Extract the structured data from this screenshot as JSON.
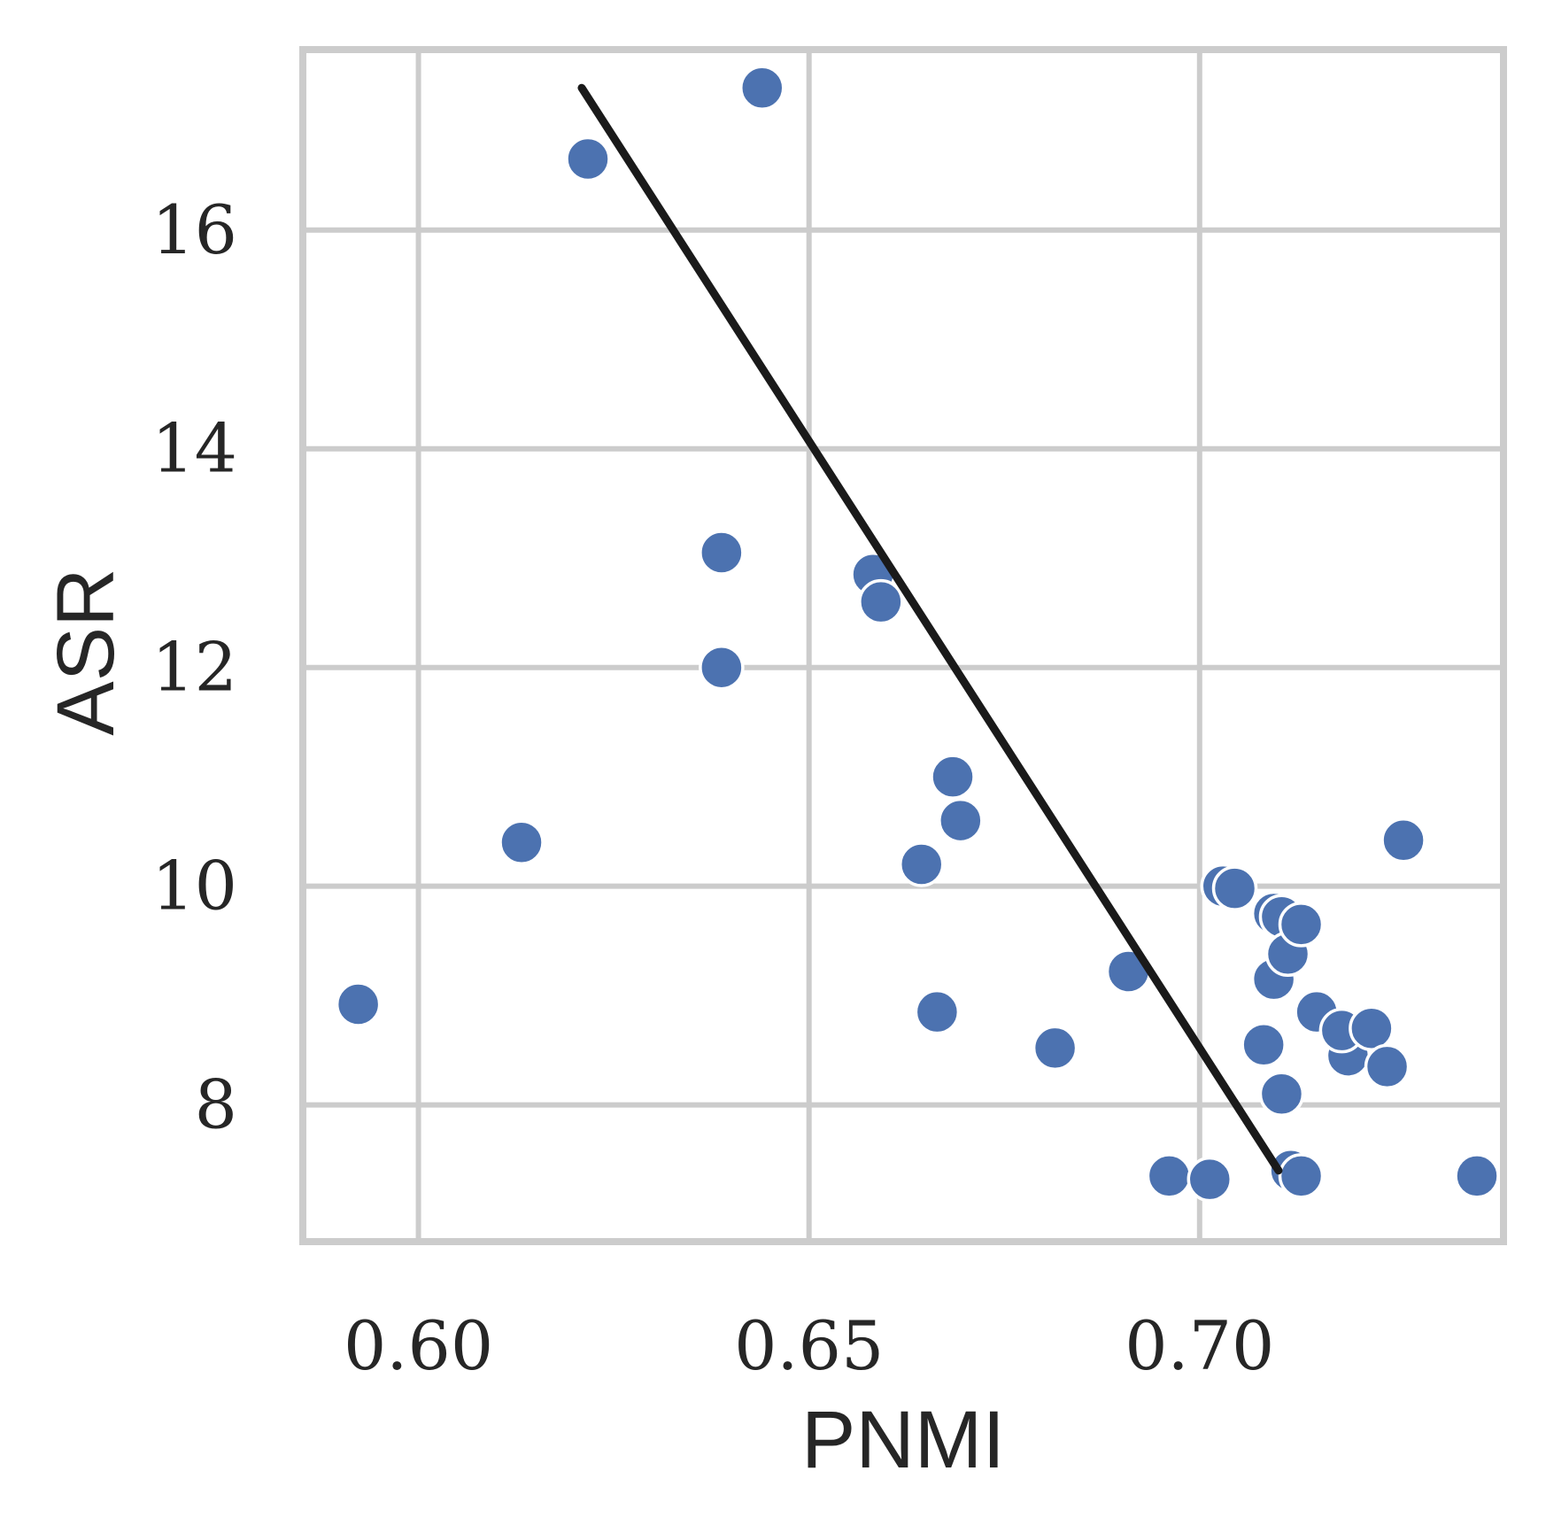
{
  "chart_data": {
    "type": "scatter",
    "title": "",
    "xlabel": "PNMI",
    "ylabel": "ASR",
    "xlim": [
      0.5852,
      0.7389
    ],
    "ylim": [
      6.75,
      17.65
    ],
    "xticks": [
      0.6,
      0.65,
      0.7
    ],
    "xtick_labels": [
      "0.60",
      "0.65",
      "0.70"
    ],
    "yticks": [
      8,
      10,
      12,
      14,
      16
    ],
    "ytick_labels": [
      "8",
      "10",
      "12",
      "14",
      "16"
    ],
    "grid": true,
    "legend": "none",
    "colors": {
      "points": "#4c72b0",
      "point_edge": "#ffffff",
      "trend_line": "#1a1a1a",
      "grid": "#cccccc",
      "frame": "#cccccc"
    },
    "series": [
      {
        "kind": "scatter",
        "x": [
          0.5923,
          0.6132,
          0.6217,
          0.6388,
          0.6388,
          0.644,
          0.6582,
          0.6592,
          0.6644,
          0.6664,
          0.6684,
          0.6694,
          0.6815,
          0.6909,
          0.6961,
          0.7013,
          0.703,
          0.7045,
          0.7082,
          0.7095,
          0.7095,
          0.7105,
          0.7105,
          0.7113,
          0.7117,
          0.713,
          0.713,
          0.715,
          0.719,
          0.7182,
          0.722,
          0.724,
          0.7261,
          0.7355
        ],
        "y": [
          8.92,
          10.4,
          16.65,
          12.0,
          13.05,
          17.3,
          12.85,
          12.6,
          10.2,
          8.85,
          11.0,
          10.6,
          8.52,
          9.22,
          7.35,
          7.32,
          10.0,
          9.98,
          8.55,
          9.15,
          9.75,
          9.72,
          8.1,
          9.38,
          7.4,
          9.65,
          7.35,
          8.85,
          8.45,
          8.68,
          8.7,
          8.35,
          10.42,
          7.35
        ]
      },
      {
        "kind": "trend_line",
        "x": [
          0.6209,
          0.7101
        ],
        "y": [
          17.3,
          7.4
        ]
      }
    ]
  }
}
